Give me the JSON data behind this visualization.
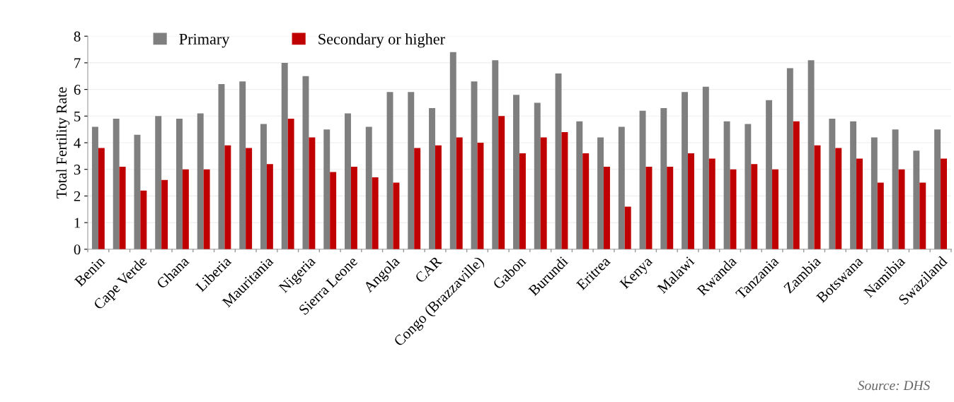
{
  "chart_data": {
    "type": "bar",
    "ylabel": "Total Fertility Rate",
    "categories": [
      "Benin",
      null,
      "Cape Verde",
      null,
      "Ghana",
      null,
      "Liberia",
      null,
      "Mauritania",
      null,
      "Nigeria",
      null,
      "Sierra Leone",
      null,
      "Angola",
      null,
      "CAR",
      null,
      "Congo (Brazzaville)",
      null,
      "Gabon",
      null,
      "Burundi",
      null,
      "Eritrea",
      null,
      "Kenya",
      null,
      "Malawi",
      null,
      "Rwanda",
      null,
      "Tanzania",
      null,
      "Zambia",
      null,
      "Botswana",
      null,
      "Namibia",
      null,
      "Swaziland"
    ],
    "series": [
      {
        "name": "Primary",
        "color": "#7f7f7f",
        "values": [
          4.6,
          4.9,
          4.3,
          5.0,
          4.9,
          5.1,
          6.2,
          6.3,
          4.7,
          7.0,
          6.5,
          4.5,
          5.1,
          4.6,
          5.9,
          5.9,
          5.3,
          7.4,
          6.3,
          7.1,
          5.8,
          5.5,
          6.6,
          4.8,
          4.2,
          4.6,
          5.2,
          5.3,
          5.9,
          6.1,
          4.8,
          4.7,
          5.6,
          6.8,
          7.1,
          4.9,
          4.8,
          4.2,
          4.5,
          3.7,
          4.5
        ]
      },
      {
        "name": "Secondary or higher",
        "color": "#c00000",
        "values": [
          3.8,
          3.1,
          2.2,
          2.6,
          3.0,
          3.0,
          3.9,
          3.8,
          3.2,
          4.9,
          4.2,
          2.9,
          3.1,
          2.7,
          2.5,
          3.8,
          3.9,
          4.2,
          4.0,
          5.0,
          3.6,
          4.2,
          4.4,
          3.6,
          3.1,
          1.6,
          3.1,
          3.1,
          3.6,
          3.4,
          3.0,
          3.2,
          3.0,
          4.8,
          3.9,
          3.8,
          3.4,
          2.5,
          3.0,
          2.5,
          3.4
        ]
      }
    ],
    "ylim": [
      0,
      8
    ],
    "yticks": [
      0,
      1,
      2,
      3,
      4,
      5,
      6,
      7,
      8
    ],
    "grid": "y",
    "legend": "top left",
    "annotations": [
      "Source: DHS"
    ]
  }
}
